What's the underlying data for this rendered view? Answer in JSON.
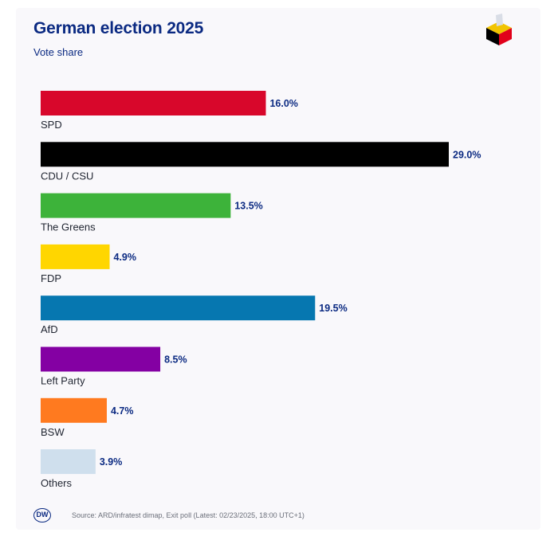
{
  "header": {
    "title": "German election 2025",
    "subtitle": "Vote share"
  },
  "footer": {
    "logo_text": "DW",
    "source": "Source: ARD/infratest dimap, Exit poll (Latest: 02/23/2025, 18:00 UTC+1)"
  },
  "chart_data": {
    "type": "bar",
    "orientation": "horizontal",
    "title": "German election 2025",
    "subtitle": "Vote share",
    "categories": [
      "SPD",
      "CDU / CSU",
      "The Greens",
      "FDP",
      "AfD",
      "Left Party",
      "BSW",
      "Others"
    ],
    "values": [
      16.0,
      29.0,
      13.5,
      4.9,
      19.5,
      8.5,
      4.7,
      3.9
    ],
    "value_labels": [
      "16.0%",
      "29.0%",
      "13.5%",
      "4.9%",
      "19.5%",
      "8.5%",
      "4.7%",
      "3.9%"
    ],
    "colors": [
      "#d8072b",
      "#000000",
      "#3db33a",
      "#ffd600",
      "#0677b0",
      "#8400a3",
      "#ff7a1f",
      "#cfdfed"
    ],
    "unit": "%",
    "xlim": [
      0,
      29.0
    ],
    "grid": false,
    "legend": "none"
  }
}
